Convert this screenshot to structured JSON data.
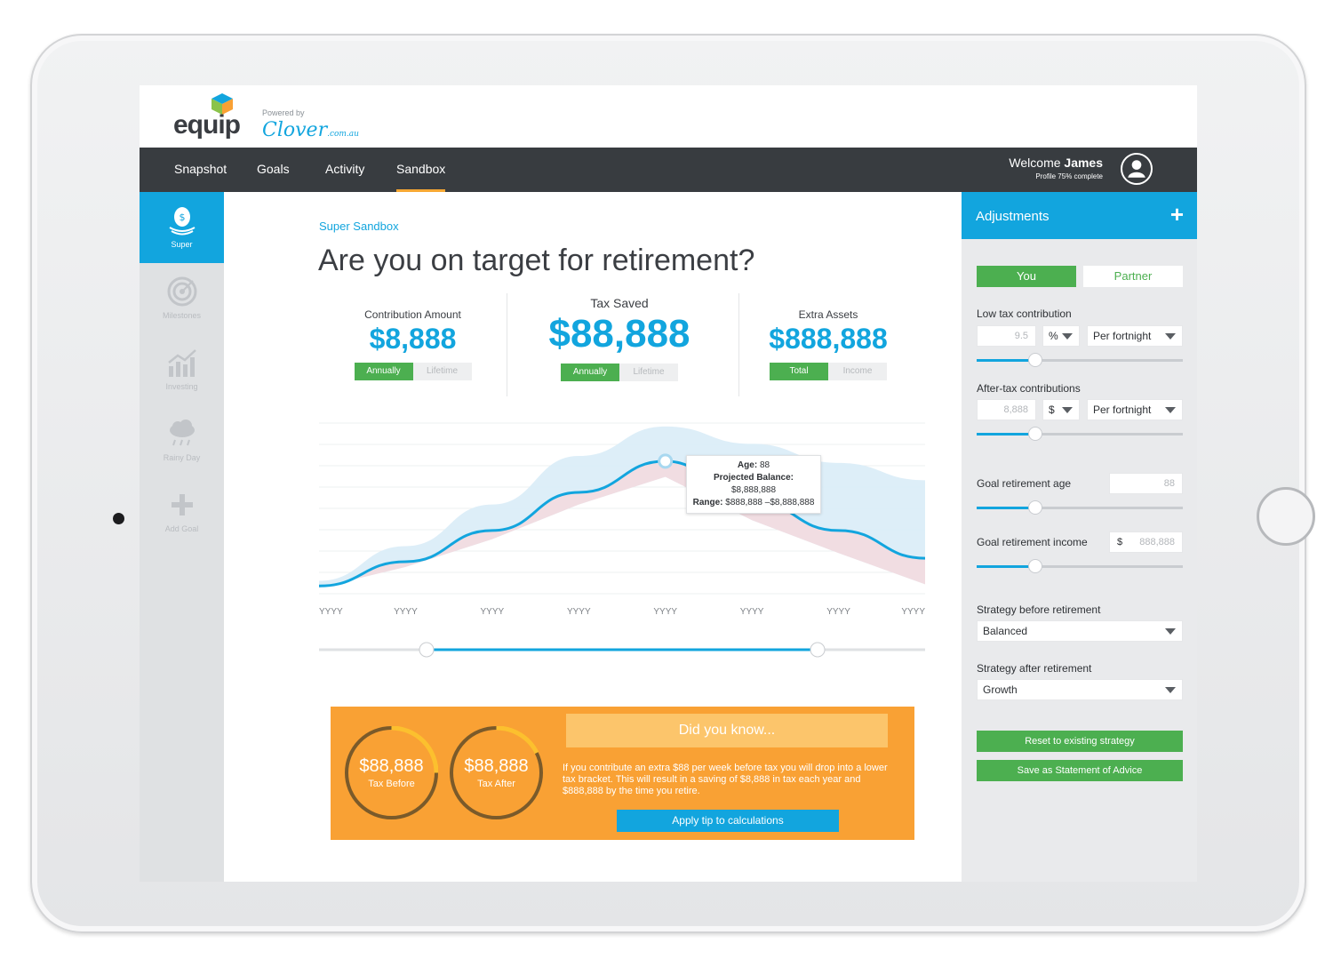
{
  "brand": {
    "name": "equip",
    "powered_by": "Powered by",
    "partner_name": "Clover",
    "partner_suffix": ".com.au"
  },
  "nav": {
    "items": [
      {
        "label": "Snapshot"
      },
      {
        "label": "Goals"
      },
      {
        "label": "Activity"
      },
      {
        "label": "Sandbox"
      }
    ],
    "active": "Sandbox",
    "welcome_prefix": "Welcome",
    "user_name": "James",
    "profile_status": "Profile 75% complete"
  },
  "sidebar": {
    "items": [
      {
        "label": "Super",
        "icon": "piggy-bank-icon"
      },
      {
        "label": "Milestones",
        "icon": "target-icon"
      },
      {
        "label": "Investing",
        "icon": "chart-up-icon"
      },
      {
        "label": "Rainy Day",
        "icon": "rain-cloud-icon"
      },
      {
        "label": "Add Goal",
        "icon": "plus-icon"
      }
    ]
  },
  "main": {
    "eyebrow": "Super Sandbox",
    "title": "Are you on target for retirement?",
    "stats": [
      {
        "label": "Contribution Amount",
        "value": "$8,888",
        "toggle": [
          "Annually",
          "Lifetime"
        ]
      },
      {
        "label": "Tax Saved",
        "value": "$88,888",
        "toggle": [
          "Annually",
          "Lifetime"
        ]
      },
      {
        "label": "Extra Assets",
        "value": "$888,888",
        "toggle": [
          "Total",
          "Income"
        ]
      }
    ]
  },
  "chart_data": {
    "type": "line",
    "x": [
      "YYYY",
      "YYYY",
      "YYYY",
      "YYYY",
      "YYYY",
      "YYYY",
      "YYYY",
      "YYYY"
    ],
    "series": [
      {
        "values": [
          0.06,
          0.2,
          0.38,
          0.6,
          0.78,
          0.55,
          0.38,
          0.22
        ]
      }
    ],
    "tooltip": {
      "age_label": "Age:",
      "age": "88",
      "balance_label": "Projected Balance:",
      "balance": "$8,888,888",
      "range_label": "Range:",
      "range": "$888,888 –$8,888,888"
    }
  },
  "promo": {
    "tax_before_value": "$88,888",
    "tax_before_label": "Tax Before",
    "tax_after_value": "$88,888",
    "tax_after_label": "Tax After",
    "heading": "Did you know...",
    "text": "If you contribute an extra $88 per week before tax you will drop into a lower tax bracket. This will result in a saving of $8,888 in tax each year and $888,888 by the time you retire.",
    "button": "Apply tip to calculations"
  },
  "adjustments": {
    "title": "Adjustments",
    "tabs": [
      "You",
      "Partner"
    ],
    "low_tax": {
      "label": "Low tax contribution",
      "value": "9.5",
      "unit": "%",
      "freq": "Per fortnight"
    },
    "after_tax": {
      "label": "After-tax contributions",
      "value": "8,888",
      "unit": "$",
      "freq": "Per fortnight"
    },
    "goal_age": {
      "label": "Goal retirement age",
      "value": "88"
    },
    "goal_income": {
      "label": "Goal retirement income",
      "prefix": "$",
      "value": "888,888"
    },
    "strategy_before": {
      "label": "Strategy before retirement",
      "value": "Balanced"
    },
    "strategy_after": {
      "label": "Strategy after retirement",
      "value": "Growth"
    },
    "reset_button": "Reset to existing strategy",
    "save_button": "Save as Statement of Advice"
  },
  "colors": {
    "accent": "#12a5de",
    "green": "#4caf50",
    "orange": "#f9a134",
    "nav": "#383c40"
  }
}
